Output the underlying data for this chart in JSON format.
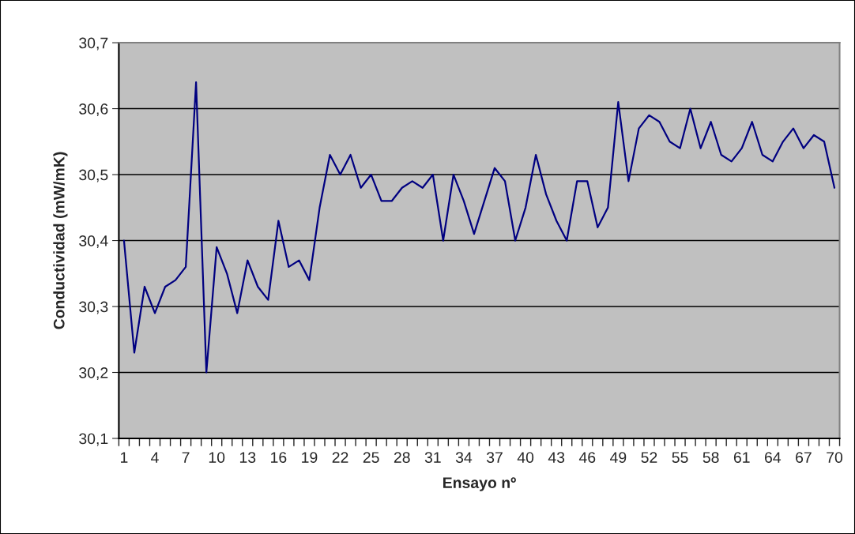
{
  "chart_data": {
    "type": "line",
    "xlabel": "Ensayo nº",
    "ylabel": "Conductividad (mW/mK)",
    "categories": [
      "1",
      null,
      null,
      "4",
      null,
      null,
      "7",
      null,
      null,
      "10",
      null,
      null,
      "13",
      null,
      null,
      "16",
      null,
      null,
      "19",
      null,
      null,
      "22",
      null,
      null,
      "25",
      null,
      null,
      "28",
      null,
      null,
      "31",
      null,
      null,
      "34",
      null,
      null,
      "37",
      null,
      null,
      "40",
      null,
      null,
      "43",
      null,
      null,
      "46",
      null,
      null,
      "49",
      null,
      null,
      "52",
      null,
      null,
      "55",
      null,
      null,
      "58",
      null,
      null,
      "61",
      null,
      null,
      "64",
      null,
      null,
      "67",
      null,
      null,
      "70"
    ],
    "series": [
      {
        "color": "#000080",
        "values": [
          30.4,
          30.23,
          30.33,
          30.29,
          30.33,
          30.34,
          30.36,
          30.64,
          30.2,
          30.39,
          30.35,
          30.29,
          30.37,
          30.33,
          30.31,
          30.43,
          30.36,
          30.37,
          30.34,
          30.45,
          30.53,
          30.5,
          30.53,
          30.48,
          30.5,
          30.46,
          30.46,
          30.48,
          30.49,
          30.48,
          30.5,
          30.4,
          30.5,
          30.46,
          30.41,
          30.46,
          30.51,
          30.49,
          30.4,
          30.45,
          30.53,
          30.47,
          30.43,
          30.4,
          30.49,
          30.49,
          30.42,
          30.45,
          30.61,
          30.49,
          30.57,
          30.59,
          30.58,
          30.55,
          30.54,
          30.6,
          30.54,
          30.58,
          30.53,
          30.52,
          30.54,
          30.58,
          30.53,
          30.52,
          30.55,
          30.57,
          30.54,
          30.56,
          30.55,
          30.48
        ]
      }
    ],
    "ylim": [
      30.1,
      30.7
    ],
    "yticks": [
      {
        "value": 30.1,
        "label": "30,1"
      },
      {
        "value": 30.2,
        "label": "30,2"
      },
      {
        "value": 30.3,
        "label": "30,3"
      },
      {
        "value": 30.4,
        "label": "30,4"
      },
      {
        "value": 30.5,
        "label": "30,5"
      },
      {
        "value": 30.6,
        "label": "30,6"
      },
      {
        "value": 30.7,
        "label": "30,7"
      }
    ],
    "grid": "y",
    "legend": false,
    "marker": "none",
    "line_style": "solid"
  }
}
